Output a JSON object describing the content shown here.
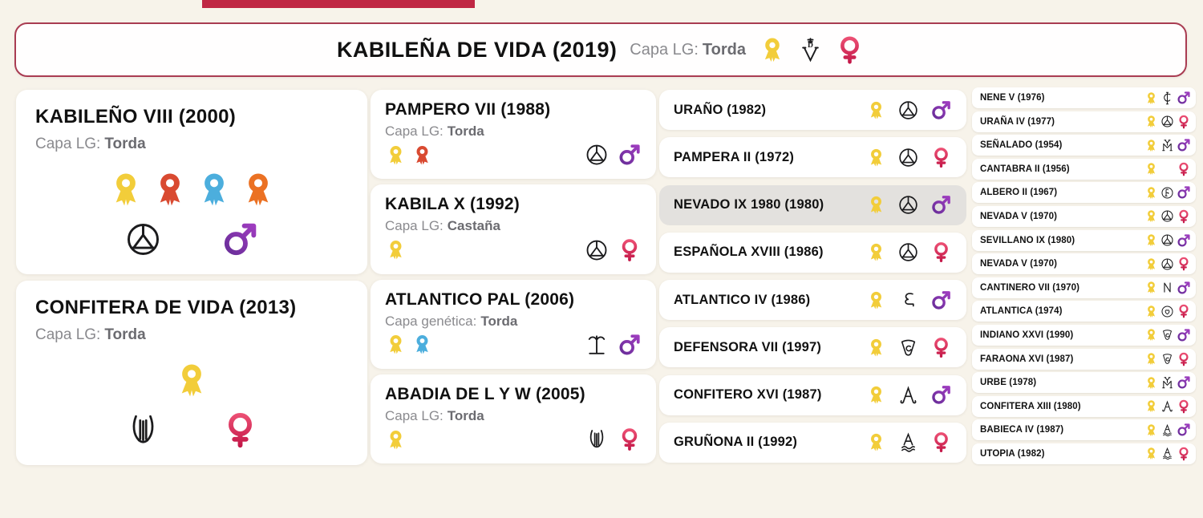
{
  "colors": {
    "background": "#f7f3ea",
    "top_bar": "#c02744",
    "card_border_accent": "#a93c52",
    "row_highlight": "#e3e1de",
    "brand_ink": "#1b1b1d",
    "name_ink": "#111111",
    "label_gray": "#8a8a8e",
    "value_gray": "#6b6b70",
    "medals": {
      "yellow": "#f2cd3a",
      "red": "#d94a31",
      "blue": "#4caedd",
      "orange": "#eb7123"
    },
    "male_gradient": [
      "#5e2b91",
      "#a93fc7"
    ],
    "female_gradient": [
      "#f05578",
      "#c01244"
    ]
  },
  "header": {
    "title": "KABILEÑA DE VIDA (2019)",
    "capa_label": "Capa LG:",
    "capa_value": "Torda",
    "medals": [
      "yellow"
    ],
    "brand": "vd-cross",
    "gender": "female"
  },
  "gen1": [
    {
      "name": "KABILEÑO VIII (2000)",
      "capa_label": "Capa LG:",
      "capa_value": "Torda",
      "medals": [
        "yellow",
        "red",
        "blue",
        "orange"
      ],
      "brand": "circle-triangle",
      "gender": "male"
    },
    {
      "name": "CONFITERA DE VIDA (2013)",
      "capa_label": "Capa LG:",
      "capa_value": "Torda",
      "medals": [
        "yellow"
      ],
      "brand": "lyre",
      "gender": "female"
    }
  ],
  "gen2": [
    {
      "name": "PAMPERO VII (1988)",
      "capa_label": "Capa LG:",
      "capa_value": "Torda",
      "medals": [
        "yellow",
        "red"
      ],
      "brand": "circle-triangle",
      "gender": "male"
    },
    {
      "name": "KABILA X (1992)",
      "capa_label": "Capa LG:",
      "capa_value": "Castaña",
      "medals": [
        "yellow"
      ],
      "brand": "circle-triangle",
      "gender": "female"
    },
    {
      "name": "ATLANTICO PAL (2006)",
      "capa_label": "Capa genética:",
      "capa_value": "Torda",
      "medals": [
        "yellow",
        "blue"
      ],
      "brand": "palm",
      "gender": "male"
    },
    {
      "name": "ABADIA DE L Y W (2005)",
      "capa_label": "Capa LG:",
      "capa_value": "Torda",
      "medals": [
        "yellow"
      ],
      "brand": "lyre",
      "gender": "female"
    }
  ],
  "gen3": [
    {
      "name": "URAÑO (1982)",
      "medals": [
        "yellow"
      ],
      "brand": "circle-triangle",
      "gender": "male"
    },
    {
      "name": "PAMPERA II (1972)",
      "medals": [
        "yellow"
      ],
      "brand": "circle-triangle",
      "gender": "female"
    },
    {
      "name": "NEVADO IX 1980 (1980)",
      "medals": [
        "yellow"
      ],
      "brand": "circle-triangle",
      "gender": "male",
      "highlighted": true
    },
    {
      "name": "ESPAÑOLA XVIII (1986)",
      "medals": [
        "yellow"
      ],
      "brand": "circle-triangle",
      "gender": "female"
    },
    {
      "name": "ATLANTICO IV (1986)",
      "medals": [
        "yellow"
      ],
      "brand": "hook",
      "gender": "male"
    },
    {
      "name": "DEFENSORA VII (1997)",
      "medals": [
        "yellow"
      ],
      "brand": "shield-c",
      "gender": "female"
    },
    {
      "name": "CONFITERO XVI (1987)",
      "medals": [
        "yellow"
      ],
      "brand": "a-curl",
      "gender": "male"
    },
    {
      "name": "GRUÑONA II (1992)",
      "medals": [
        "yellow"
      ],
      "brand": "a-waves",
      "gender": "female"
    }
  ],
  "gen4": [
    {
      "name": "NENE V (1976)",
      "medals": [
        "yellow"
      ],
      "brand": "c-bar",
      "gender": "male"
    },
    {
      "name": "URAÑA IV (1977)",
      "medals": [
        "yellow"
      ],
      "brand": "circle-triangle",
      "gender": "female"
    },
    {
      "name": "SEÑALADO (1954)",
      "medals": [
        "yellow"
      ],
      "brand": "my-monogram",
      "gender": "male"
    },
    {
      "name": "CANTABRA II (1956)",
      "medals": [
        "yellow"
      ],
      "brand": "none",
      "gender": "female"
    },
    {
      "name": "ALBERO II (1967)",
      "medals": [
        "yellow"
      ],
      "brand": "circle-f",
      "gender": "male"
    },
    {
      "name": "NEVADA V (1970)",
      "medals": [
        "yellow"
      ],
      "brand": "circle-triangle",
      "gender": "female"
    },
    {
      "name": "SEVILLANO IX (1980)",
      "medals": [
        "yellow"
      ],
      "brand": "circle-triangle",
      "gender": "male"
    },
    {
      "name": "NEVADA V (1970)",
      "medals": [
        "yellow"
      ],
      "brand": "circle-triangle",
      "gender": "female"
    },
    {
      "name": "CANTINERO VII (1970)",
      "medals": [
        "yellow"
      ],
      "brand": "n",
      "gender": "male"
    },
    {
      "name": "ATLANTICA (1974)",
      "medals": [
        "yellow"
      ],
      "brand": "circle-heart",
      "gender": "female"
    },
    {
      "name": "INDIANO XXVI (1990)",
      "medals": [
        "yellow"
      ],
      "brand": "shield-c",
      "gender": "male"
    },
    {
      "name": "FARAONA XVI (1987)",
      "medals": [
        "yellow"
      ],
      "brand": "shield-c",
      "gender": "female"
    },
    {
      "name": "URBE (1978)",
      "medals": [
        "yellow"
      ],
      "brand": "my-monogram",
      "gender": "male"
    },
    {
      "name": "CONFITERA XIII (1980)",
      "medals": [
        "yellow"
      ],
      "brand": "a-curl",
      "gender": "female"
    },
    {
      "name": "BABIECA IV (1987)",
      "medals": [
        "yellow"
      ],
      "brand": "a-waves",
      "gender": "male"
    },
    {
      "name": "UTOPIA (1982)",
      "medals": [
        "yellow"
      ],
      "brand": "a-waves",
      "gender": "female"
    }
  ]
}
